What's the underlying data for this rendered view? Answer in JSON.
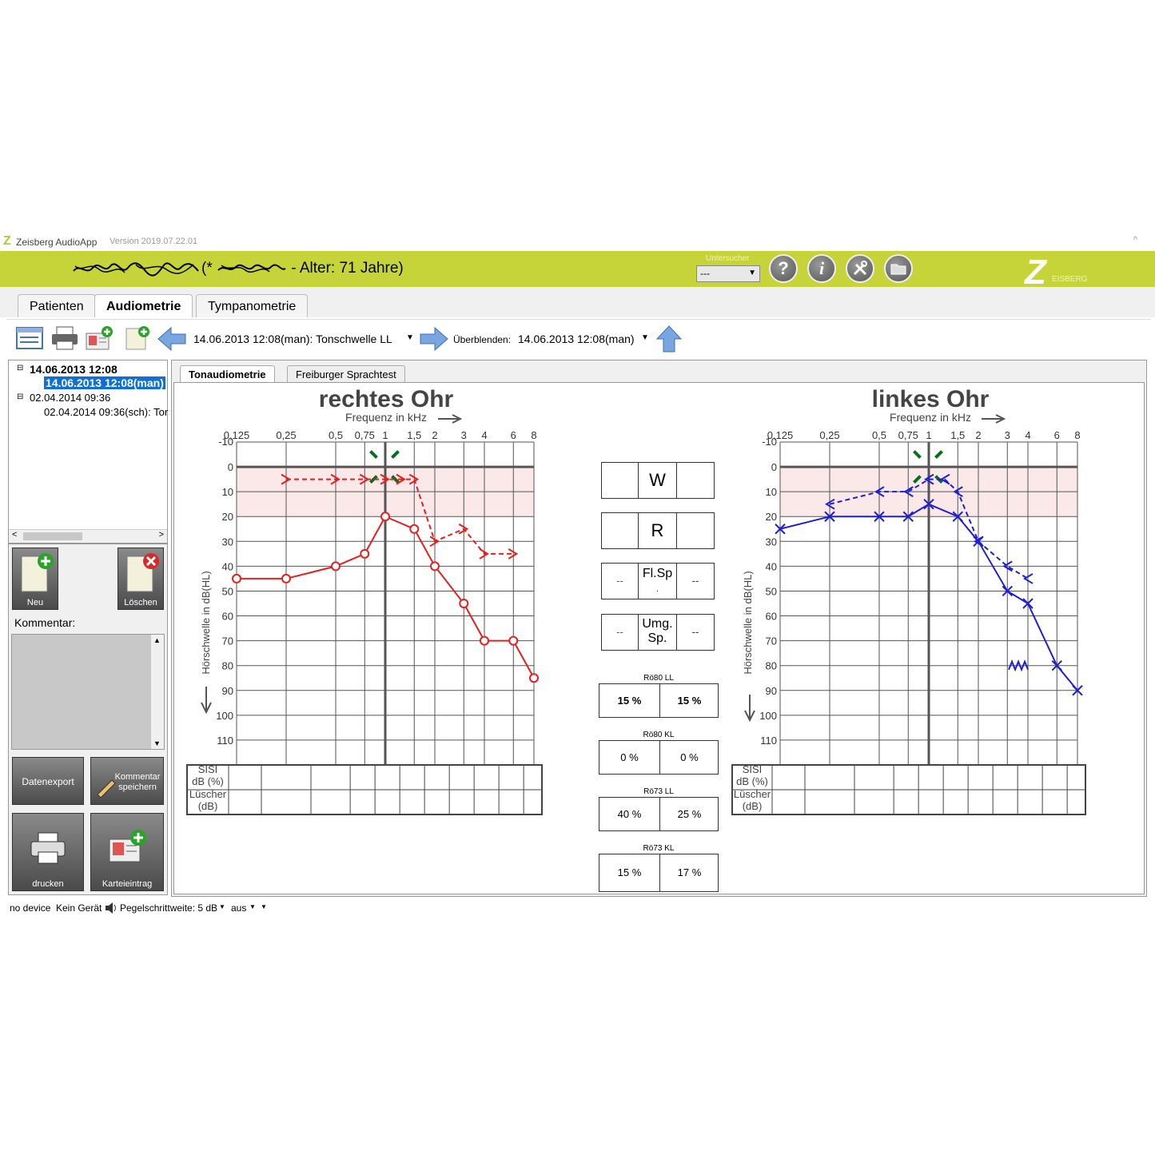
{
  "app": {
    "logo_letter": "Z",
    "name": "Zeisberg AudioApp",
    "version": "Version 2019.07.22.01",
    "window_caret": "^"
  },
  "header": {
    "patient_info": "(* ",
    "age": " - Alter: 71 Jahre)",
    "examiner_label": "Untersucher",
    "examiner_value": "---",
    "help_glyph": "?",
    "info_glyph": "i",
    "brand_letter": "Z",
    "brand_text": "EISBERG"
  },
  "tabs": [
    {
      "label": "Patienten"
    },
    {
      "label": "Audiometrie"
    },
    {
      "label": "Tympanometrie"
    }
  ],
  "toolbar": {
    "measurement_select": "14.06.2013 12:08(man): Tonschwelle LL",
    "overlay_label": "Überblenden:",
    "overlay_select": "14.06.2013 12:08(man)"
  },
  "tree": {
    "nodes": [
      {
        "label": "14.06.2013 12:08"
      },
      {
        "label": "14.06.2013 12:08(man)"
      },
      {
        "label": "02.04.2014 09:36"
      },
      {
        "label": "02.04.2014 09:36(sch): Tor"
      }
    ],
    "scroll_left": "<",
    "scroll_right": ">"
  },
  "leftpanel": {
    "new_label": "Neu",
    "delete_label": "Löschen",
    "comment_label": "Kommentar:",
    "export_label": "Datenexport",
    "save_comment_label": "Kommentar speichern",
    "print_label": "drucken",
    "record_label": "Karteieintrag"
  },
  "subtabs": [
    {
      "label": "Tonaudiometrie"
    },
    {
      "label": "Freiburger Sprachtest"
    }
  ],
  "audiogram": {
    "right_title": "rechtes Ohr",
    "left_title": "linkes Ohr",
    "freq_label": "Frequenz in kHz",
    "ylabel": "Hörschwelle in dB(HL)",
    "freq_ticks": [
      "0,125",
      "0,25",
      "0,5",
      "0,75",
      "1",
      "1,5",
      "2",
      "3",
      "4",
      "6",
      "8"
    ],
    "db_ticks": [
      -10,
      0,
      10,
      20,
      30,
      40,
      50,
      60,
      70,
      80,
      90,
      100,
      110
    ],
    "sisi_label_1": "SISI",
    "sisi_label_2": "dB (%)",
    "luscher_label_1": "Lüscher",
    "luscher_label_2": "(dB)",
    "colors": {
      "right": "#e41f1f",
      "left": "#1f1fd6",
      "bone_marker": "#0b6b1e",
      "grid": "#555555",
      "shade": "#fbe9e9"
    }
  },
  "middle": {
    "weber": "W",
    "rinne": "R",
    "flsp_label": "Fl.Sp",
    "flsp_dot": ".",
    "umgsp_label_1": "Umg.",
    "umgsp_label_2": "Sp.",
    "dash": "--",
    "results": [
      {
        "label": "Rö80 LL",
        "left": "15 %",
        "right": "15 %",
        "bold": true
      },
      {
        "label": "Rö80 KL",
        "left": "0 %",
        "right": "0 %",
        "bold": false
      },
      {
        "label": "Rö73 LL",
        "left": "40 %",
        "right": "25 %",
        "bold": false
      },
      {
        "label": "Rö73 KL",
        "left": "15 %",
        "right": "17 %",
        "bold": false
      }
    ]
  },
  "statusbar": {
    "device": "no device",
    "device_state": "Kein Gerät",
    "level_step": "Pegelschrittweite: 5 dB",
    "mode": "aus"
  },
  "chart_data": [
    {
      "type": "line",
      "title": "rechtes Ohr",
      "xlabel": "Frequenz in kHz",
      "ylabel": "Hörschwelle in dB(HL)",
      "x_scale": "log",
      "y_inverted": true,
      "ylim": [
        -10,
        120
      ],
      "series": [
        {
          "x": [
            0.125,
            0.25,
            0.5,
            0.75,
            1,
            1.5,
            2,
            3,
            4,
            6,
            8
          ],
          "y": [
            45,
            45,
            40,
            35,
            20,
            25,
            40,
            55,
            70,
            70,
            85
          ],
          "style": "solid",
          "marker": "circle"
        },
        {
          "x": [
            0.25,
            0.5,
            0.75,
            1,
            1.25,
            1.5,
            2,
            3,
            4,
            6
          ],
          "y": [
            5,
            5,
            5,
            5,
            5,
            5,
            30,
            25,
            35,
            35
          ],
          "style": "dashed",
          "marker": "chevron-right"
        }
      ]
    },
    {
      "type": "line",
      "title": "linkes Ohr",
      "xlabel": "Frequenz in kHz",
      "ylabel": "Hörschwelle in dB(HL)",
      "x_scale": "log",
      "y_inverted": true,
      "ylim": [
        -10,
        120
      ],
      "series": [
        {
          "x": [
            0.125,
            0.25,
            0.5,
            0.75,
            1,
            1.5,
            2,
            3,
            4,
            6,
            8
          ],
          "y": [
            25,
            20,
            20,
            20,
            15,
            20,
            30,
            50,
            55,
            80,
            90
          ],
          "style": "solid",
          "marker": "cross"
        },
        {
          "x": [
            0.25,
            0.5,
            0.75,
            1,
            1.25,
            1.5,
            2,
            3,
            4
          ],
          "y": [
            15,
            10,
            10,
            5,
            5,
            10,
            30,
            40,
            45
          ],
          "style": "dashed",
          "marker": "chevron-left"
        }
      ]
    }
  ]
}
